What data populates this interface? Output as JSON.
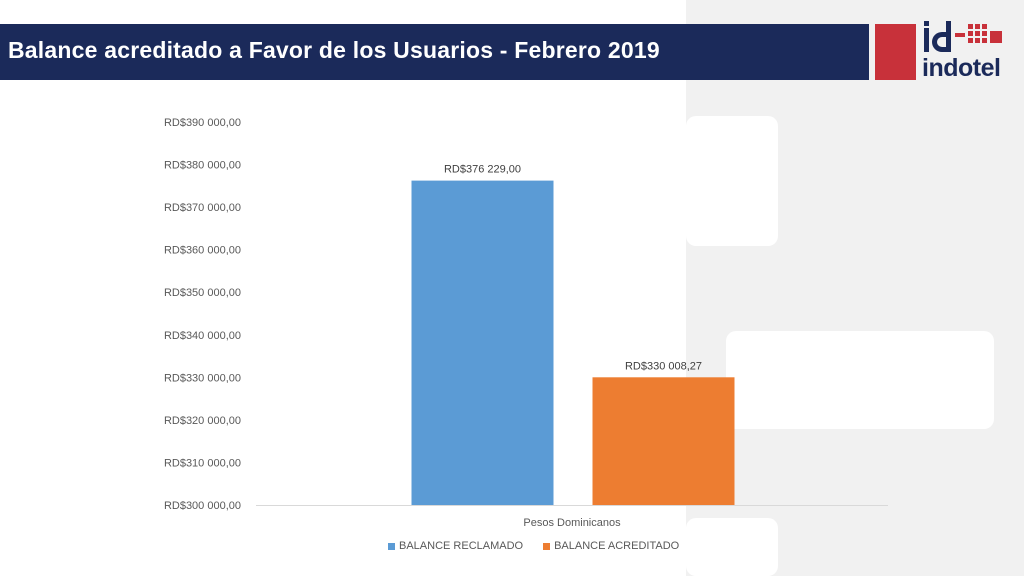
{
  "header": {
    "title": "Balance acreditado a Favor de los Usuarios - Febrero 2019"
  },
  "logo": {
    "mark": "id",
    "name": "indotel",
    "brand_color": "#c8313a",
    "dark_color": "#1b2a5a"
  },
  "chart_data": {
    "type": "bar",
    "title": "",
    "xlabel": "",
    "ylabel": "",
    "categories": [
      "Pesos Dominicanos"
    ],
    "series": [
      {
        "name": "BALANCE RECLAMADO",
        "values": [
          376229.0
        ],
        "label": "RD$376 229,00",
        "color": "#5b9bd5"
      },
      {
        "name": "BALANCE ACREDITADO",
        "values": [
          330008.27
        ],
        "label": "RD$330 008,27",
        "color": "#ed7d31"
      }
    ],
    "ylim": [
      300000,
      390000
    ],
    "yticks": [
      300000,
      310000,
      320000,
      330000,
      340000,
      350000,
      360000,
      370000,
      380000,
      390000
    ],
    "ytick_labels": [
      "RD$300 000,00",
      "RD$310 000,00",
      "RD$320 000,00",
      "RD$330 000,00",
      "RD$340 000,00",
      "RD$350 000,00",
      "RD$360 000,00",
      "RD$370 000,00",
      "RD$380 000,00",
      "RD$390 000,00"
    ],
    "grid": false,
    "legend_position": "bottom"
  }
}
